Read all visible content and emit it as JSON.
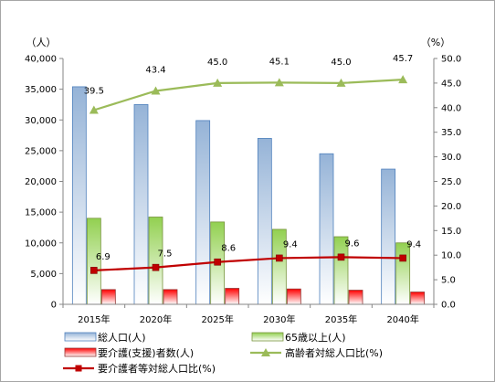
{
  "chart_data": {
    "type": "bar",
    "categories": [
      "2015年",
      "2020年",
      "2025年",
      "2030年",
      "2035年",
      "2040年"
    ],
    "left_axis": {
      "unit": "（人）",
      "ylim": [
        0,
        40000
      ],
      "ticks": [
        "0",
        "5,000",
        "10,000",
        "15,000",
        "20,000",
        "25,000",
        "30,000",
        "35,000",
        "40,000"
      ]
    },
    "right_axis": {
      "unit": "（%）",
      "ylim": [
        0,
        50
      ],
      "ticks": [
        "0.0",
        "5.0",
        "10.0",
        "15.0",
        "20.0",
        "25.0",
        "30.0",
        "35.0",
        "40.0",
        "45.0",
        "50.0"
      ]
    },
    "series": [
      {
        "name": "総人口(人)",
        "kind": "bar",
        "axis": "left",
        "color": "#95b3d7",
        "values": [
          35400,
          32500,
          29900,
          27000,
          24500,
          22000
        ]
      },
      {
        "name": "65歳以上(人)",
        "kind": "bar",
        "axis": "left",
        "color": "#92d050",
        "values": [
          14000,
          14200,
          13400,
          12200,
          11000,
          10000
        ]
      },
      {
        "name": "要介護(支援)者数(人)",
        "kind": "bar",
        "axis": "left",
        "color": "#ff0000",
        "values": [
          2400,
          2400,
          2600,
          2500,
          2300,
          2000
        ]
      },
      {
        "name": "高齢者対総人口比(%)",
        "kind": "line",
        "axis": "right",
        "color": "#9bbb59",
        "marker": "triangle",
        "values": [
          39.5,
          43.4,
          45.0,
          45.1,
          45.0,
          45.7
        ],
        "labels": [
          "39.5",
          "43.4",
          "45.0",
          "45.1",
          "45.0",
          "45.7"
        ]
      },
      {
        "name": "要介護者等対総人口比(%)",
        "kind": "line",
        "axis": "right",
        "color": "#c00000",
        "marker": "square",
        "values": [
          6.9,
          7.5,
          8.6,
          9.4,
          9.6,
          9.4
        ],
        "labels": [
          "6.9",
          "7.5",
          "8.6",
          "9.4",
          "9.6",
          "9.4"
        ]
      }
    ],
    "grid": false,
    "legend_position": "bottom"
  }
}
